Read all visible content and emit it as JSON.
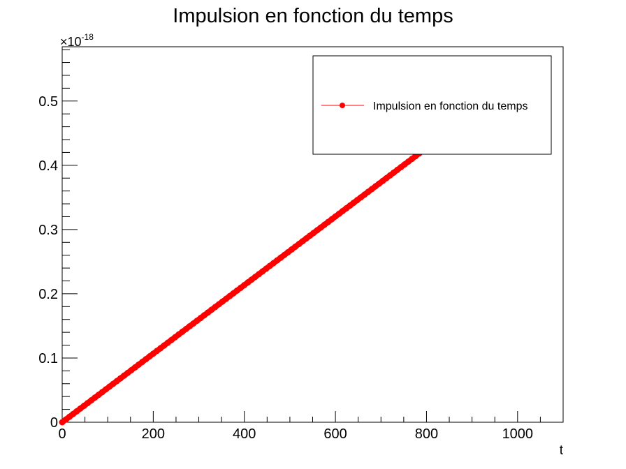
{
  "chart_data": {
    "type": "scatter",
    "title": "Impulsion en fonction du temps",
    "xlabel": "t",
    "ylabel": "",
    "xlim": [
      0,
      1100
    ],
    "ylim": [
      0,
      0.5845
    ],
    "y_multiplier": "×10",
    "y_multiplier_exponent": "-18",
    "x_ticks": [
      "0",
      "200",
      "400",
      "600",
      "800",
      "1000"
    ],
    "y_ticks": [
      "0",
      "0.1",
      "0.2",
      "0.3",
      "0.4",
      "0.5"
    ],
    "series": [
      {
        "name": "Impulsion en fonction du temps",
        "color": "#ff0000",
        "line": {
          "x": [
            0,
            800
          ],
          "y": [
            0,
            0.427
          ]
        }
      }
    ],
    "legend": {
      "position": "top-right"
    },
    "grid": false
  }
}
